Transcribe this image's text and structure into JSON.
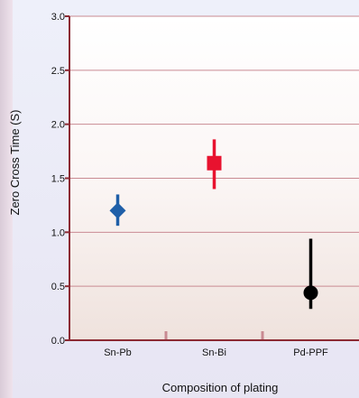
{
  "chart_data": {
    "type": "scatter",
    "xlabel": "Composition of plating",
    "ylabel": "Zero Cross Time (S)",
    "categories": [
      "Sn-Pb",
      "Sn-Bi",
      "Pd-PPF"
    ],
    "ylim": [
      0.0,
      3.0
    ],
    "yticks": [
      "0.0",
      "0.5",
      "1.0",
      "1.5",
      "2.0",
      "2.5",
      "3.0"
    ],
    "grid": true,
    "points": [
      {
        "category": "Sn-Pb",
        "y": 1.2,
        "low": 1.06,
        "high": 1.35,
        "marker": "diamond",
        "color": "#1f5fa8"
      },
      {
        "category": "Sn-Bi",
        "y": 1.64,
        "low": 1.4,
        "high": 1.86,
        "marker": "square",
        "color": "#e8122f"
      },
      {
        "category": "Pd-PPF",
        "y": 0.44,
        "low": 0.29,
        "high": 0.94,
        "marker": "circle",
        "color": "#000000"
      }
    ]
  }
}
